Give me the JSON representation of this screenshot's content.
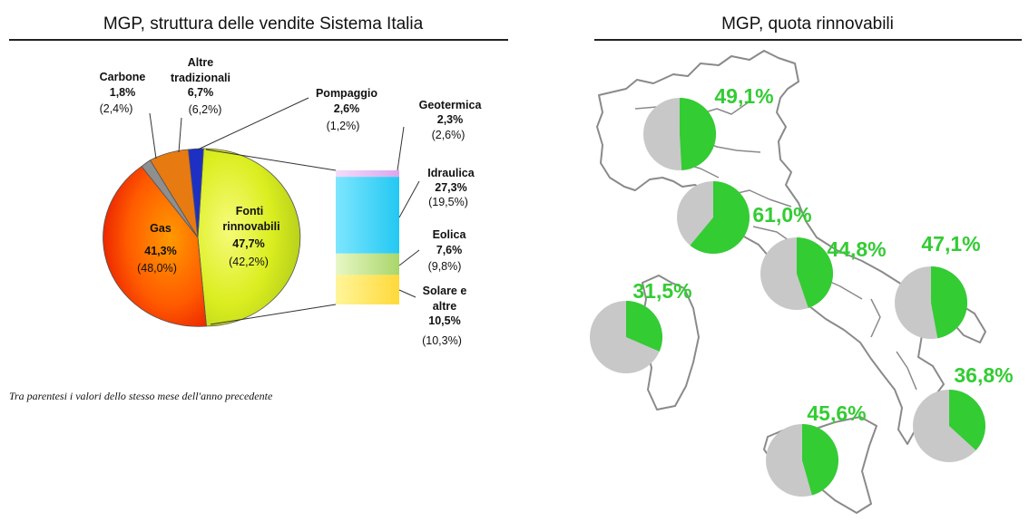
{
  "left_title": "MGP, struttura delle vendite Sistema Italia",
  "right_title": "MGP, quota rinnovabili",
  "footnote": "Tra parentesi i valori dello stesso mese dell'anno precedente",
  "chart_data": [
    {
      "type": "pie",
      "title": "MGP, struttura delle vendite Sistema Italia",
      "slices": [
        {
          "label": "Fonti rinnovabili",
          "value": 47.7,
          "value_label": "47,7%",
          "prev_label": "(42,2%)",
          "color": "#d7ea1c"
        },
        {
          "label": "Gas",
          "value": 41.3,
          "value_label": "41,3%",
          "prev_label": "(48,0%)",
          "color": "#ff4a00"
        },
        {
          "label": "Carbone",
          "value": 1.8,
          "value_label": "1,8%",
          "prev_label": "(2,4%)",
          "color": "#8f8f8f"
        },
        {
          "label": "Altre tradizionali",
          "value": 6.7,
          "value_label": "6,7%",
          "prev_label": "(6,2%)",
          "color": "#e87a12"
        },
        {
          "label": "Pompaggio",
          "value": 2.6,
          "value_label": "2,6%",
          "prev_label": "(1,2%)",
          "color": "#1e2fc4"
        }
      ],
      "breakdown": {
        "of": "Fonti rinnovabili",
        "type": "stacked-bar",
        "segments": [
          {
            "label": "Geotermica",
            "value": 2.3,
            "value_label": "2,3%",
            "prev_label": "(2,6%)",
            "color": "#e4b8f2"
          },
          {
            "label": "Idraulica",
            "value": 27.3,
            "value_label": "27,3%",
            "prev_label": "(19,5%)",
            "color": "#3ad2f5"
          },
          {
            "label": "Eolica",
            "value": 7.6,
            "value_label": "7,6%",
            "prev_label": "(9,8%)",
            "color": "#bde07e"
          },
          {
            "label": "Solare e altre",
            "value": 10.5,
            "value_label": "10,5%",
            "prev_label": "(10,3%)",
            "color": "#ffe04a"
          }
        ]
      }
    },
    {
      "type": "pie",
      "title": "MGP, quota rinnovabili",
      "note": "Share of renewables per market zone, drawn as small pies over a map of Italy",
      "series": [
        {
          "value": 49.1,
          "value_label": "49,1%"
        },
        {
          "value": 61.0,
          "value_label": "61,0%"
        },
        {
          "value": 44.8,
          "value_label": "44,8%"
        },
        {
          "value": 47.1,
          "value_label": "47,1%"
        },
        {
          "value": 31.5,
          "value_label": "31,5%"
        },
        {
          "value": 36.8,
          "value_label": "36,8%"
        },
        {
          "value": 45.6,
          "value_label": "45,6%"
        }
      ],
      "colors": {
        "renewable": "#33cc33",
        "rest": "#c8c8c8",
        "label": "#33cc33"
      }
    }
  ]
}
